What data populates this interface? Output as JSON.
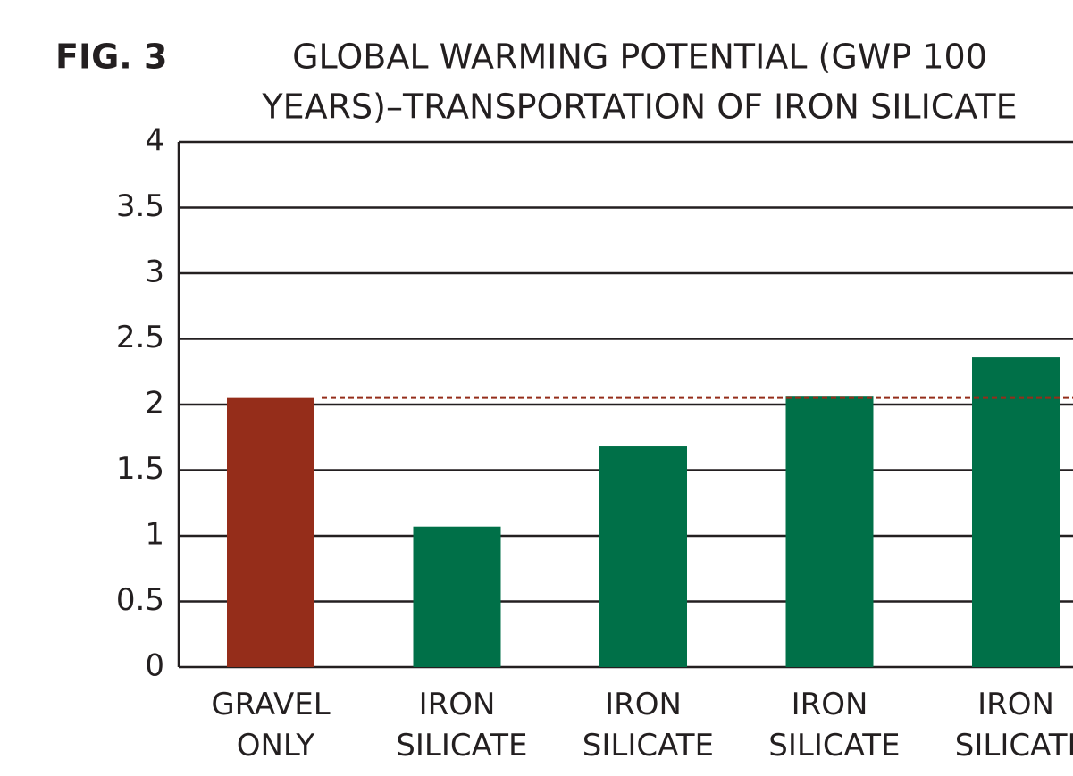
{
  "chart_data": {
    "type": "bar",
    "figure_label": "FIG. 3",
    "title": [
      "GLOBAL WARMING POTENTIAL (GWP 100",
      "YEARS)–TRANSPORTATION OF IRON SILICATE"
    ],
    "categories": [
      "GRAVEL ONLY",
      "IRON SILICATE",
      "IRON SILICATE",
      "IRON SILICATE",
      "IRON SILICATE"
    ],
    "values": [
      2.05,
      1.07,
      1.68,
      2.06,
      2.36
    ],
    "colors": [
      "#952d1a",
      "#007048",
      "#007048",
      "#007048",
      "#007048"
    ],
    "reference_line": {
      "value": 2.05,
      "color": "#952d1a"
    },
    "ylim": [
      0,
      4
    ],
    "yticks": [
      0,
      0.5,
      1,
      1.5,
      2,
      2.5,
      3,
      3.5,
      4
    ],
    "grid": true
  }
}
